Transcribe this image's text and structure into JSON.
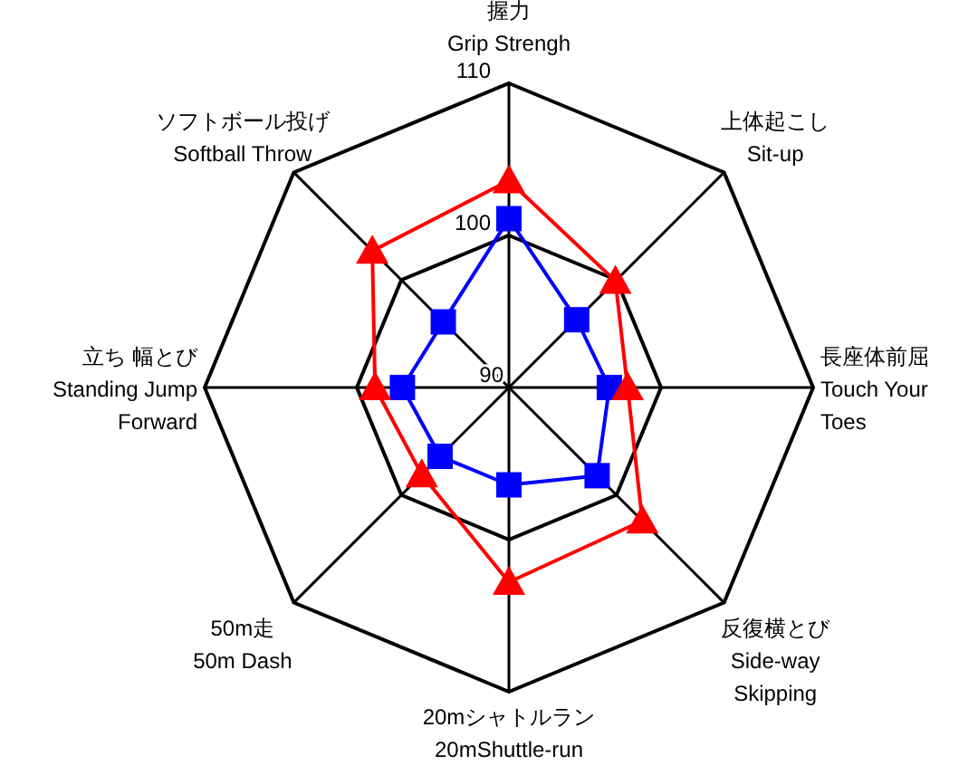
{
  "chart_data": {
    "type": "radar",
    "categories": [
      "握力\nGrip Strengh",
      "上体起こし\nSit-up",
      "長座体前屈\nTouch Your\nToes",
      "反復横とび\nSide-way\nSkipping",
      "20mシャトルラン\n20mShuttle-run",
      "50m走\n50m Dash",
      "立ち 幅とび\nStanding Jump\nForward",
      "ソフトボール投げ\nSoftball Throw"
    ],
    "ylim": [
      90,
      110
    ],
    "yticks": [
      90,
      100,
      110
    ],
    "grid": true,
    "series": [
      {
        "color": "#0000ff",
        "marker": "square",
        "values": [
          101.1,
          96.3,
          96.6,
          98.2,
          96.4,
          96.4,
          97.0,
          96.1
        ]
      },
      {
        "color": "#ff0000",
        "marker": "triangle",
        "values": [
          103.6,
          99.9,
          97.8,
          102.4,
          102.8,
          98.1,
          98.8,
          102.7
        ]
      }
    ]
  }
}
